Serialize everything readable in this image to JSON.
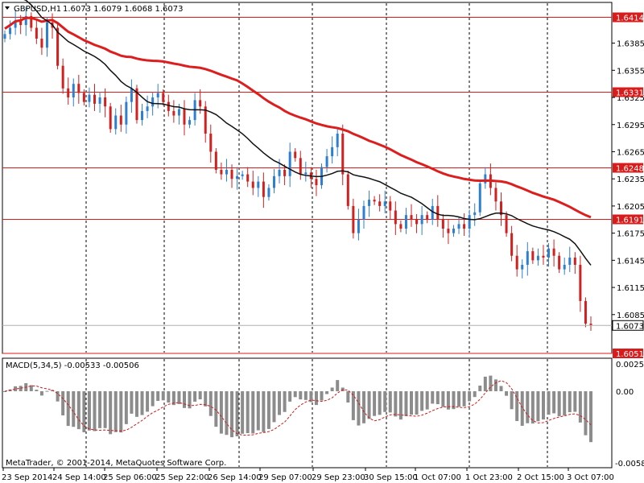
{
  "header": {
    "symbol": "GBPUSD,H1",
    "ohlc": "1.6073 1.6079 1.6068 1.6073"
  },
  "price_axis": {
    "ticks": [
      "1.6385",
      "1.6355",
      "1.6325",
      "1.6295",
      "1.6265",
      "1.6235",
      "1.6205",
      "1.6175",
      "1.6145",
      "1.6115",
      "1.6085"
    ]
  },
  "levels": [
    {
      "label": "1.6414",
      "value": 1.6414
    },
    {
      "label": "1.6331",
      "value": 1.6331
    },
    {
      "label": "1.6248",
      "value": 1.6248
    },
    {
      "label": "1.6191",
      "value": 1.6191
    },
    {
      "label": "1.6051",
      "value": 1.6051
    }
  ],
  "current_price": {
    "label": "1.6073",
    "value": 1.6073
  },
  "time_axis": {
    "labels": [
      "23 Sep 2014",
      "24 Sep 14:00",
      "25 Sep 06:00",
      "25 Sep 22:00",
      "26 Sep 14:00",
      "29 Sep 07:00",
      "29 Sep 23:00",
      "30 Sep 15:00",
      "1 Oct 07:00",
      "1 Oct 23:00",
      "2 Oct 15:00",
      "3 Oct 07:00"
    ]
  },
  "macd": {
    "title": "MACD(5,34,5) -0.00533 -0.00506",
    "axis_labels": [
      "0.0025",
      "0.00",
      "-0.00581"
    ]
  },
  "footer": {
    "copyright": "MetaTrader, © 2001-2014, MetaQuotes Software Corp."
  },
  "colors": {
    "up_candle": "#2f7fd0",
    "down_candle": "#d02020",
    "level_line": "#d81c1c",
    "fast_ma": "#111111",
    "slow_ma": "#dd1e1e",
    "histogram": "#8c8c8c",
    "signal": "#d01818"
  },
  "chart_data": {
    "type": "candlestick",
    "instrument": "GBPUSD",
    "timeframe": "H1",
    "ylim": [
      1.6051,
      1.643
    ],
    "close_series_approx": [
      1.6395,
      1.6402,
      1.641,
      1.6405,
      1.6415,
      1.6402,
      1.639,
      1.638,
      1.6408,
      1.6402,
      1.636,
      1.6335,
      1.6325,
      1.634,
      1.633,
      1.632,
      1.6328,
      1.6318,
      1.6325,
      1.6315,
      1.629,
      1.6305,
      1.6295,
      1.632,
      1.6335,
      1.63,
      1.631,
      1.6315,
      1.6325,
      1.633,
      1.632,
      1.631,
      1.6305,
      1.6312,
      1.6295,
      1.63,
      1.6322,
      1.6315,
      1.6285,
      1.6265,
      1.6245,
      1.624,
      1.6245,
      1.6235,
      1.6238,
      1.624,
      1.6232,
      1.6225,
      1.6232,
      1.6215,
      1.6225,
      1.6238,
      1.6245,
      1.6238,
      1.6265,
      1.6258,
      1.624,
      1.6242,
      1.6235,
      1.6228,
      1.6248,
      1.626,
      1.627,
      1.6285,
      1.624,
      1.6205,
      1.6175,
      1.619,
      1.6205,
      1.6212,
      1.621,
      1.6205,
      1.621,
      1.62,
      1.6185,
      1.618,
      1.6195,
      1.619,
      1.6185,
      1.6195,
      1.619,
      1.6205,
      1.619,
      1.618,
      1.6175,
      1.618,
      1.6185,
      1.618,
      1.6195,
      1.6198,
      1.623,
      1.624,
      1.6225,
      1.621,
      1.6195,
      1.6175,
      1.615,
      1.6135,
      1.614,
      1.6155,
      1.6145,
      1.615,
      1.6148,
      1.6158,
      1.615,
      1.6135,
      1.614,
      1.6148,
      1.614,
      1.61,
      1.6075,
      1.6073
    ]
  }
}
